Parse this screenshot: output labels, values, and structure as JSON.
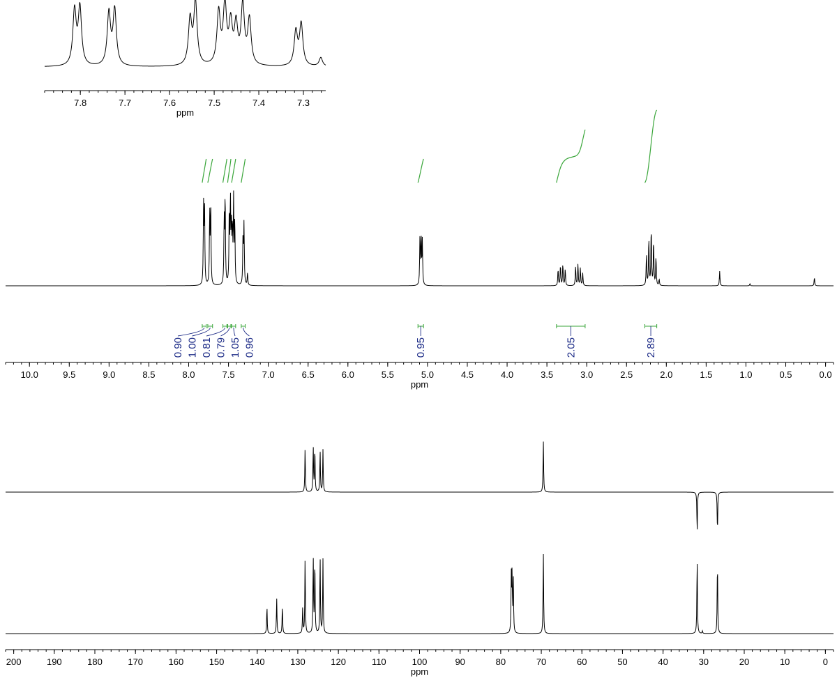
{
  "chart_data": [
    {
      "id": "h1-inset",
      "type": "line",
      "title": "",
      "xlabel": "ppm",
      "xlim": [
        7.88,
        7.25
      ],
      "reversed_x": true,
      "ticks_major": [
        7.8,
        7.7,
        7.6,
        7.5,
        7.4,
        7.3
      ],
      "tick_labels": [
        "7.8",
        "7.7",
        "7.6",
        "7.5",
        "7.4",
        "7.3"
      ],
      "peaks": [
        {
          "ppm": 7.813,
          "height": 0.87
        },
        {
          "ppm": 7.801,
          "height": 0.91
        },
        {
          "ppm": 7.736,
          "height": 0.83
        },
        {
          "ppm": 7.723,
          "height": 0.88
        },
        {
          "ppm": 7.554,
          "height": 0.72
        },
        {
          "ppm": 7.542,
          "height": 1.0
        },
        {
          "ppm": 7.49,
          "height": 0.83
        },
        {
          "ppm": 7.476,
          "height": 0.94
        },
        {
          "ppm": 7.463,
          "height": 0.63
        },
        {
          "ppm": 7.451,
          "height": 0.61
        },
        {
          "ppm": 7.436,
          "height": 0.94
        },
        {
          "ppm": 7.421,
          "height": 0.72
        },
        {
          "ppm": 7.317,
          "height": 0.54
        },
        {
          "ppm": 7.305,
          "height": 0.66
        },
        {
          "ppm": 7.261,
          "height": 0.14
        }
      ]
    },
    {
      "id": "h1-full",
      "type": "line",
      "title": "",
      "xlabel": "ppm",
      "xlim": [
        10.3,
        -0.1
      ],
      "reversed_x": true,
      "ticks_major": [
        10.0,
        9.5,
        9.0,
        8.5,
        8.0,
        7.5,
        7.0,
        6.5,
        6.0,
        5.5,
        5.0,
        4.5,
        4.0,
        3.5,
        3.0,
        2.5,
        2.0,
        1.5,
        1.0,
        0.5,
        0.0
      ],
      "tick_labels": [
        "10.0",
        "9.5",
        "9.0",
        "8.5",
        "8.0",
        "7.5",
        "7.0",
        "6.5",
        "6.0",
        "5.5",
        "5.0",
        "4.5",
        "4.0",
        "3.5",
        "3.0",
        "2.5",
        "2.0",
        "1.5",
        "1.0",
        "0.5",
        "0.0"
      ],
      "peaks": [
        {
          "ppm": 7.813,
          "height": 0.74
        },
        {
          "ppm": 7.801,
          "height": 0.77
        },
        {
          "ppm": 7.736,
          "height": 0.7
        },
        {
          "ppm": 7.723,
          "height": 0.74
        },
        {
          "ppm": 7.554,
          "height": 0.62
        },
        {
          "ppm": 7.542,
          "height": 0.85
        },
        {
          "ppm": 7.49,
          "height": 0.7
        },
        {
          "ppm": 7.476,
          "height": 0.79
        },
        {
          "ppm": 7.463,
          "height": 0.52
        },
        {
          "ppm": 7.451,
          "height": 0.51
        },
        {
          "ppm": 7.436,
          "height": 0.79
        },
        {
          "ppm": 7.421,
          "height": 0.6
        },
        {
          "ppm": 7.317,
          "height": 0.48
        },
        {
          "ppm": 7.305,
          "height": 0.57
        },
        {
          "ppm": 7.261,
          "height": 0.12
        },
        {
          "ppm": 5.095,
          "height": 0.44
        },
        {
          "ppm": 5.08,
          "height": 0.46
        },
        {
          "ppm": 5.065,
          "height": 0.42
        },
        {
          "ppm": 3.36,
          "height": 0.16
        },
        {
          "ppm": 3.33,
          "height": 0.2
        },
        {
          "ppm": 3.3,
          "height": 0.21
        },
        {
          "ppm": 3.27,
          "height": 0.16
        },
        {
          "ppm": 3.14,
          "height": 0.19
        },
        {
          "ppm": 3.11,
          "height": 0.21
        },
        {
          "ppm": 3.08,
          "height": 0.17
        },
        {
          "ppm": 3.05,
          "height": 0.12
        },
        {
          "ppm": 2.25,
          "height": 0.3
        },
        {
          "ppm": 2.22,
          "height": 0.46
        },
        {
          "ppm": 2.19,
          "height": 0.56
        },
        {
          "ppm": 2.16,
          "height": 0.44
        },
        {
          "ppm": 2.13,
          "height": 0.28
        },
        {
          "ppm": 2.09,
          "height": 0.06
        },
        {
          "ppm": 1.33,
          "height": 0.14
        },
        {
          "ppm": 0.95,
          "height": 0.02
        },
        {
          "ppm": 0.14,
          "height": 0.08
        }
      ],
      "integrals": [
        {
          "from": 7.83,
          "to": 7.78,
          "value": "0.90"
        },
        {
          "from": 7.76,
          "to": 7.7,
          "value": "1.00"
        },
        {
          "from": 7.57,
          "to": 7.52,
          "value": "0.81"
        },
        {
          "from": 7.51,
          "to": 7.47,
          "value": "0.79"
        },
        {
          "from": 7.46,
          "to": 7.41,
          "value": "1.05"
        },
        {
          "from": 7.34,
          "to": 7.29,
          "value": "0.96"
        },
        {
          "from": 5.12,
          "to": 5.05,
          "value": "0.95"
        },
        {
          "from": 3.38,
          "to": 3.02,
          "value": "2.05"
        },
        {
          "from": 2.27,
          "to": 2.12,
          "value": "2.89"
        }
      ]
    },
    {
      "id": "c13-dept",
      "type": "line",
      "title": "",
      "xlabel": "",
      "xlim": [
        202,
        -2
      ],
      "reversed_x": true,
      "peaks": [
        {
          "ppm": 128.2,
          "height": 0.85
        },
        {
          "ppm": 126.2,
          "height": 0.87
        },
        {
          "ppm": 125.8,
          "height": 0.86
        },
        {
          "ppm": 124.5,
          "height": 0.8
        },
        {
          "ppm": 123.8,
          "height": 0.81
        },
        {
          "ppm": 69.5,
          "height": 1.0
        },
        {
          "ppm": 31.6,
          "height": -0.78
        },
        {
          "ppm": 26.6,
          "height": -0.78
        }
      ]
    },
    {
      "id": "c13-full",
      "type": "line",
      "title": "",
      "xlabel": "ppm",
      "xlim": [
        202,
        -2
      ],
      "reversed_x": true,
      "ticks_major": [
        200,
        190,
        180,
        170,
        160,
        150,
        140,
        130,
        120,
        110,
        100,
        90,
        80,
        70,
        60,
        50,
        40,
        30,
        20,
        10,
        0
      ],
      "tick_labels": [
        "200",
        "190",
        "180",
        "170",
        "160",
        "150",
        "140",
        "130",
        "120",
        "110",
        "100",
        "90",
        "80",
        "70",
        "60",
        "50",
        "40",
        "30",
        "20",
        "10",
        "0"
      ],
      "peaks": [
        {
          "ppm": 137.6,
          "height": 0.34
        },
        {
          "ppm": 135.2,
          "height": 0.43
        },
        {
          "ppm": 133.8,
          "height": 0.34
        },
        {
          "ppm": 128.8,
          "height": 0.31
        },
        {
          "ppm": 128.2,
          "height": 0.93
        },
        {
          "ppm": 126.2,
          "height": 0.93
        },
        {
          "ppm": 125.8,
          "height": 0.91
        },
        {
          "ppm": 124.5,
          "height": 0.94
        },
        {
          "ppm": 123.8,
          "height": 0.9
        },
        {
          "ppm": 77.4,
          "height": 0.68
        },
        {
          "ppm": 77.2,
          "height": 0.69
        },
        {
          "ppm": 76.9,
          "height": 0.68
        },
        {
          "ppm": 69.5,
          "height": 1.0
        },
        {
          "ppm": 31.6,
          "height": 0.93
        },
        {
          "ppm": 30.3,
          "height": 0.03
        },
        {
          "ppm": 26.6,
          "height": 0.9
        }
      ]
    }
  ]
}
